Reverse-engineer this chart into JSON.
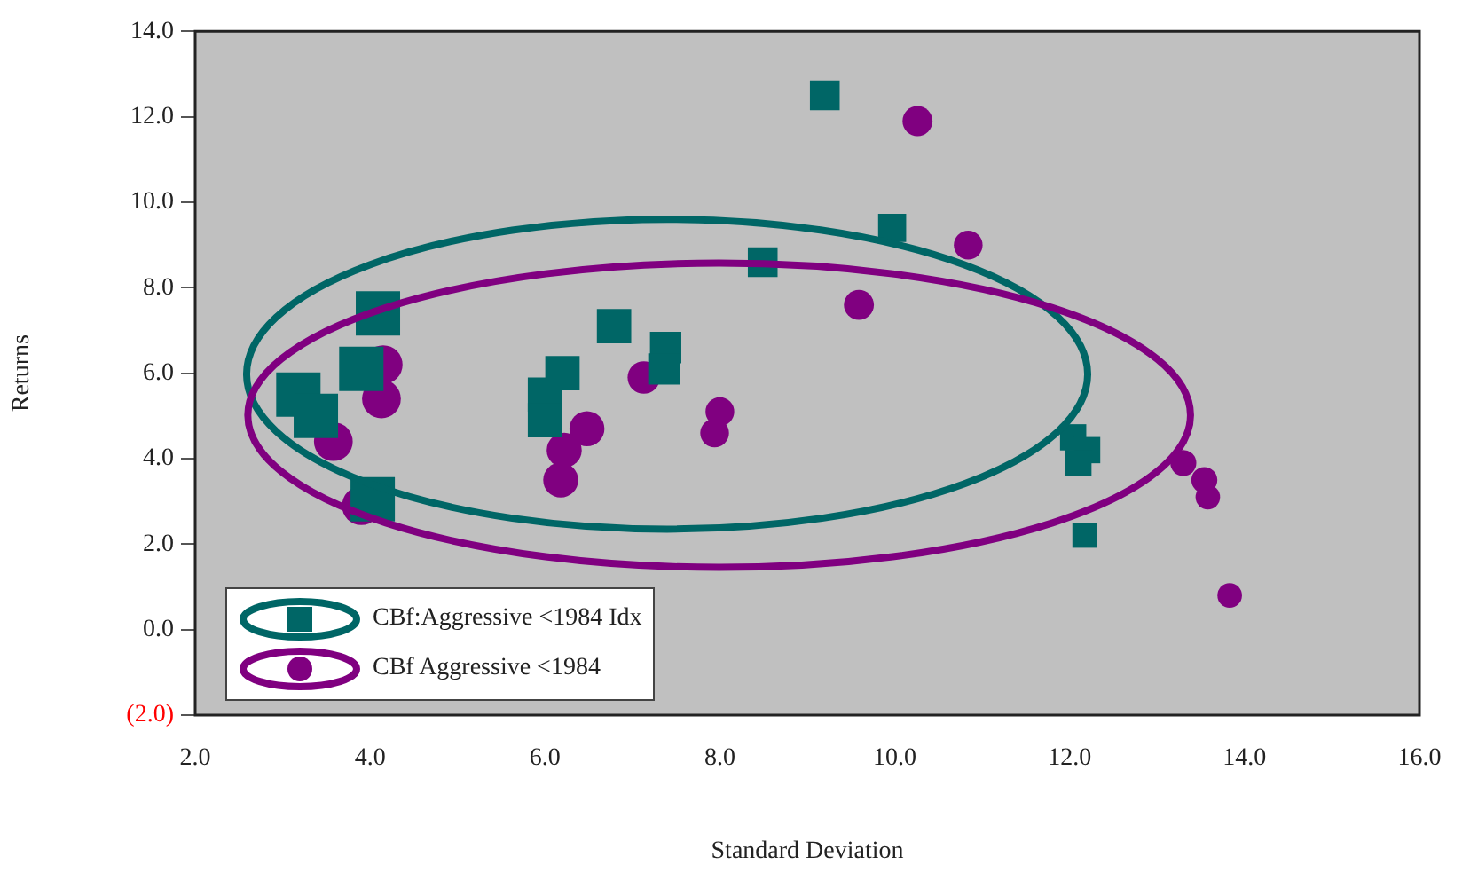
{
  "chart_data": {
    "type": "bubble",
    "xlabel": "Standard Deviation",
    "ylabel": "Returns",
    "xlim": [
      2,
      16
    ],
    "xticks": [
      {
        "value": 2,
        "label": "2.0"
      },
      {
        "value": 4,
        "label": "4.0"
      },
      {
        "value": 6,
        "label": "6.0"
      },
      {
        "value": 8,
        "label": "8.0"
      },
      {
        "value": 10,
        "label": "10.0"
      },
      {
        "value": 12,
        "label": "12.0"
      },
      {
        "value": 14,
        "label": "14.0"
      },
      {
        "value": 16,
        "label": "16.0"
      }
    ],
    "ylim": [
      -2,
      14
    ],
    "yticks": [
      {
        "value": -2,
        "label": "(2.0)"
      },
      {
        "value": 0,
        "label": "0.0"
      },
      {
        "value": 2,
        "label": "2.0"
      },
      {
        "value": 4,
        "label": "4.0"
      },
      {
        "value": 6,
        "label": "6.0"
      },
      {
        "value": 8,
        "label": "8.0"
      },
      {
        "value": 10,
        "label": "10.0"
      },
      {
        "value": 12,
        "label": "12.0"
      },
      {
        "value": 14,
        "label": "14.0"
      }
    ],
    "grid": false,
    "legend": "bottom left",
    "series": [
      {
        "name": "CBf:Aggressive <1984 Idx",
        "color": "#006666",
        "marker": "square",
        "x": [
          9.2,
          9.97,
          8.49,
          4.09,
          6.79,
          7.38,
          7.36,
          6.2,
          3.9,
          3.18,
          6.0,
          6.0,
          3.38,
          4.03,
          12.04,
          12.2,
          12.1,
          12.17
        ],
        "values": [
          12.5,
          9.4,
          8.6,
          7.4,
          7.1,
          6.6,
          6.1,
          6.0,
          6.1,
          5.5,
          5.5,
          4.9,
          5.0,
          3.05,
          4.5,
          4.2,
          3.9,
          2.2
        ],
        "sizes": [
          0.45,
          0.4,
          0.45,
          1,
          0.6,
          0.5,
          0.5,
          0.6,
          1,
          1,
          0.6,
          0.6,
          1,
          1,
          0.35,
          0.35,
          0.35,
          0.3
        ]
      },
      {
        "name": "CBf Aggressive <1984",
        "color": "#800080",
        "marker": "circle",
        "x": [
          10.26,
          10.84,
          9.59,
          4.15,
          4.13,
          3.58,
          3.9,
          7.13,
          6.48,
          6.22,
          6.18,
          8.0,
          7.94,
          13.3,
          13.54,
          13.58,
          13.83
        ],
        "values": [
          11.9,
          9.0,
          7.6,
          6.2,
          5.4,
          4.4,
          2.9,
          5.9,
          4.7,
          4.2,
          3.5,
          5.1,
          4.6,
          3.9,
          3.5,
          3.1,
          0.8
        ],
        "sizes": [
          0.36,
          0.33,
          0.36,
          0.6,
          0.6,
          0.6,
          0.6,
          0.42,
          0.49,
          0.49,
          0.49,
          0.33,
          0.33,
          0.27,
          0.27,
          0.24,
          0.24
        ]
      }
    ]
  }
}
